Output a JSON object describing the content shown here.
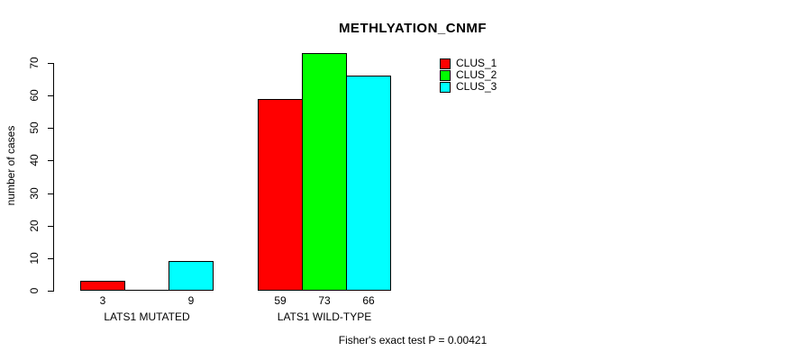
{
  "title": "METHLYATION_CNMF",
  "footer": "Fisher's exact test P = 0.00421",
  "y_axis": {
    "label": "number of cases",
    "ticks": [
      0,
      10,
      20,
      30,
      40,
      50,
      60,
      70
    ]
  },
  "legend": {
    "position": "top-right",
    "items": [
      {
        "label": "CLUS_1",
        "color": "#ff0000"
      },
      {
        "label": "CLUS_2",
        "color": "#00ff00"
      },
      {
        "label": "CLUS_3",
        "color": "#00ffff"
      }
    ]
  },
  "chart_data": {
    "type": "bar",
    "title": "METHLYATION_CNMF",
    "xlabel": "",
    "ylabel": "number of cases",
    "ylim": [
      0,
      70
    ],
    "grid": false,
    "legend_position": "top-right",
    "categories": [
      "LATS1 MUTATED",
      "LATS1 WILD-TYPE"
    ],
    "series": [
      {
        "name": "CLUS_1",
        "color": "#ff0000",
        "values": [
          3,
          59
        ]
      },
      {
        "name": "CLUS_2",
        "color": "#00ff00",
        "values": [
          0,
          73
        ]
      },
      {
        "name": "CLUS_3",
        "color": "#00ffff",
        "values": [
          9,
          66
        ]
      }
    ],
    "bar_value_labels": [
      "3",
      "9",
      "59",
      "73",
      "66"
    ],
    "annotation": "Fisher's exact test P = 0.00421"
  }
}
